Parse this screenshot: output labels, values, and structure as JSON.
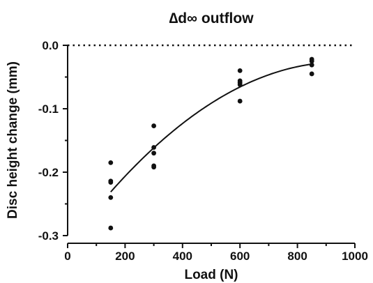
{
  "chart_data": {
    "type": "scatter",
    "title": "∆d∞ outflow",
    "xlabel": "Load (N)",
    "ylabel": "Disc height change (mm)",
    "xlim": [
      0,
      1000
    ],
    "ylim": [
      -0.3,
      0.0
    ],
    "x_ticks": [
      "0",
      "200",
      "400",
      "600",
      "800",
      "1000"
    ],
    "y_ticks": [
      "0.0",
      "-0.1",
      "-0.2",
      "-0.3"
    ],
    "zero_line": "dotted",
    "grid": false,
    "legend": "none",
    "point_color": "#111111",
    "series": [
      {
        "points": [
          {
            "x": 150,
            "y": -0.185
          },
          {
            "x": 150,
            "y": -0.214
          },
          {
            "x": 150,
            "y": -0.216
          },
          {
            "x": 150,
            "y": -0.24
          },
          {
            "x": 150,
            "y": -0.288
          },
          {
            "x": 300,
            "y": -0.127
          },
          {
            "x": 300,
            "y": -0.161
          },
          {
            "x": 300,
            "y": -0.17
          },
          {
            "x": 300,
            "y": -0.19
          },
          {
            "x": 300,
            "y": -0.192
          },
          {
            "x": 600,
            "y": -0.04
          },
          {
            "x": 600,
            "y": -0.056
          },
          {
            "x": 600,
            "y": -0.059
          },
          {
            "x": 600,
            "y": -0.062
          },
          {
            "x": 600,
            "y": -0.088
          },
          {
            "x": 850,
            "y": -0.022
          },
          {
            "x": 850,
            "y": -0.025
          },
          {
            "x": 850,
            "y": -0.031
          },
          {
            "x": 850,
            "y": -0.045
          }
        ]
      }
    ],
    "fit_curve": {
      "type": "polynomial-2",
      "x_range": [
        150,
        850
      ],
      "points": [
        {
          "x": 150,
          "y": -0.232
        },
        {
          "x": 300,
          "y": -0.16
        },
        {
          "x": 450,
          "y": -0.107
        },
        {
          "x": 600,
          "y": -0.066
        },
        {
          "x": 750,
          "y": -0.04
        },
        {
          "x": 850,
          "y": -0.029
        }
      ]
    }
  }
}
